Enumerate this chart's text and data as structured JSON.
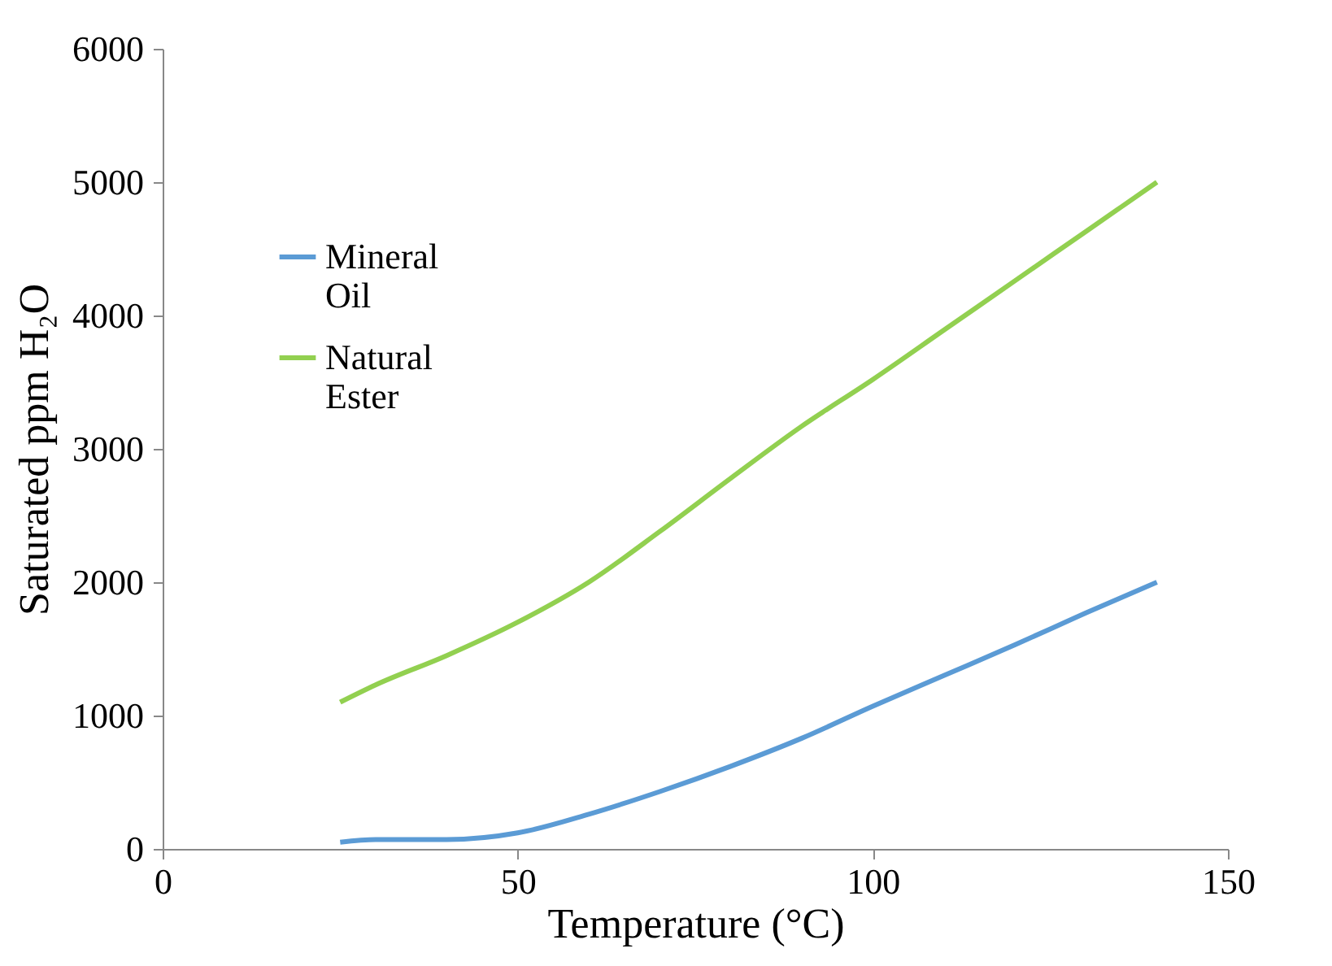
{
  "chart_data": {
    "type": "line",
    "xlabel": "Temperature (°C)",
    "ylabel": "Saturated ppm H₂O",
    "xlim": [
      0,
      150
    ],
    "xticks": [
      0,
      50,
      100,
      150
    ],
    "ylim": [
      0,
      6000
    ],
    "yticks": [
      0,
      1000,
      2000,
      3000,
      4000,
      5000,
      6000
    ],
    "grid": false,
    "legend": "top left",
    "marker": "none",
    "line_style": "solid",
    "x": [
      25,
      30,
      40,
      50,
      60,
      70,
      80,
      90,
      100,
      110,
      120,
      130,
      140
    ],
    "series": [
      {
        "name": "Mineral Oil",
        "color": "#5b9bd5",
        "values": [
          50,
          70,
          70,
          120,
          260,
          430,
          620,
          830,
          1070,
          1300,
          1530,
          1770,
          2000
        ]
      },
      {
        "name": "Natural Ester",
        "color": "#92d050",
        "values": [
          1100,
          1230,
          1450,
          1700,
          2000,
          2380,
          2780,
          3170,
          3520,
          3890,
          4260,
          4630,
          5000
        ]
      }
    ]
  }
}
